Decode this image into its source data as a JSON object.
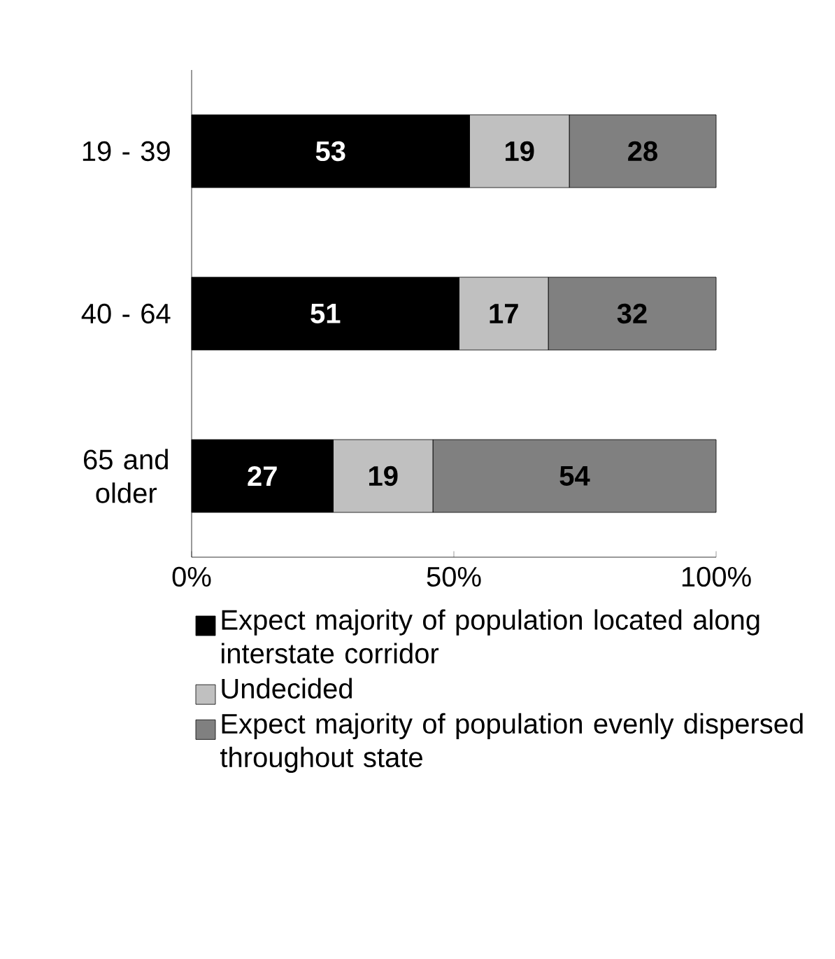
{
  "chart_data": {
    "type": "bar",
    "orientation": "horizontal",
    "stacked": true,
    "data_labels": true,
    "legend": "bottom",
    "categories": [
      "19 - 39",
      "40 - 64",
      "65 and older"
    ],
    "series": [
      {
        "name": "Expect majority of population located along interstate corridor",
        "color": "#000000",
        "values": [
          53,
          51,
          27
        ]
      },
      {
        "name": "Undecided",
        "color": "#c0c0c0",
        "values": [
          19,
          17,
          19
        ]
      },
      {
        "name": "Expect majority of population evenly dispersed throughout state",
        "color": "#808080",
        "values": [
          28,
          32,
          54
        ]
      }
    ],
    "xlim": [
      0,
      100
    ],
    "xticks": [
      {
        "value": 0,
        "label": "0%"
      },
      {
        "value": 50,
        "label": "50%"
      },
      {
        "value": 100,
        "label": "100%"
      }
    ]
  }
}
